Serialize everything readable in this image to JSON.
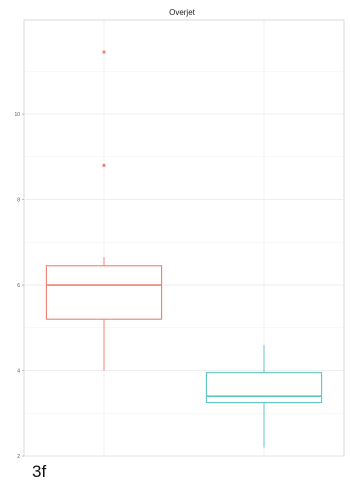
{
  "chart_data": {
    "type": "box",
    "title": "Overjet",
    "xlabel": "",
    "ylabel": "",
    "ylim": [
      2,
      12.2
    ],
    "yticks": [
      2,
      4,
      6,
      8,
      10
    ],
    "grid": true,
    "legend": "none",
    "series": [
      {
        "color": "#f08070",
        "whisker_low": 4.0,
        "q1": 5.2,
        "median": 6.0,
        "q3": 6.45,
        "whisker_high": 6.65,
        "outliers": [
          8.8,
          11.45
        ]
      },
      {
        "color": "#5fc6c4",
        "whisker_low": 2.2,
        "q1": 3.25,
        "median": 3.4,
        "q3": 3.95,
        "whisker_high": 4.6,
        "outliers": []
      }
    ]
  },
  "panel_label": "3f"
}
